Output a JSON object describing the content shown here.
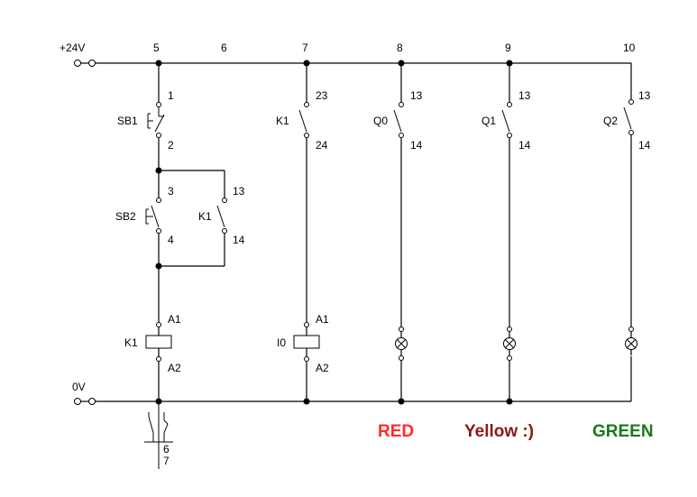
{
  "rails": {
    "positive": "+24V",
    "negative": "0V"
  },
  "columns": [
    "5",
    "6",
    "7",
    "8",
    "9",
    "10"
  ],
  "branch1": {
    "sb1": {
      "label": "SB1",
      "top": "1",
      "bottom": "2"
    },
    "sb2": {
      "label": "SB2",
      "top": "3",
      "bottom": "4"
    },
    "k1_hold": {
      "label": "K1",
      "top": "13",
      "bottom": "14"
    },
    "coil": {
      "label": "K1",
      "top": "A1",
      "bottom": "A2"
    },
    "refs": [
      "6",
      "7"
    ]
  },
  "branch2": {
    "contact": {
      "label": "K1",
      "top": "23",
      "bottom": "24"
    },
    "coil": {
      "label": "I0",
      "top": "A1",
      "bottom": "A2"
    }
  },
  "lamps": [
    {
      "contact_label": "Q0",
      "top": "13",
      "bottom": "14"
    },
    {
      "contact_label": "Q1",
      "top": "13",
      "bottom": "14"
    },
    {
      "contact_label": "Q2",
      "top": "13",
      "bottom": "14"
    }
  ],
  "captions": [
    {
      "text": "RED",
      "color": "#ff2a2a"
    },
    {
      "text": "Yellow :)",
      "color": "#8b1a1a"
    },
    {
      "text": "GREEN",
      "color": "#1a7a1a"
    }
  ]
}
